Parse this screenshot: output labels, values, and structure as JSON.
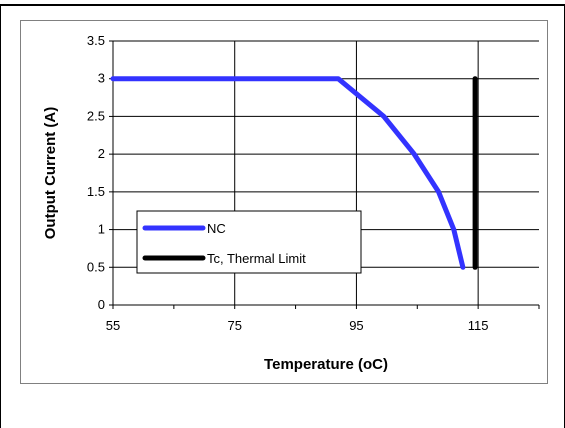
{
  "chart_data": {
    "type": "line",
    "xlabel": "Temperature (oC)",
    "ylabel": "Output Current (A)",
    "xlim": [
      55,
      125
    ],
    "ylim": [
      0,
      3.5
    ],
    "x_ticks": [
      "55",
      "75",
      "95",
      "115"
    ],
    "x_tick_values": [
      55,
      75,
      95,
      115
    ],
    "y_ticks": [
      "0",
      "0.5",
      "1",
      "1.5",
      "2",
      "2.5",
      "3",
      "3.5"
    ],
    "y_tick_values": [
      0,
      0.5,
      1,
      1.5,
      2,
      2.5,
      3,
      3.5
    ],
    "grid": true,
    "legend_position": "bottom-left",
    "series": [
      {
        "name": "NC",
        "color": "#3333ff",
        "points": [
          [
            55,
            3
          ],
          [
            92,
            3
          ],
          [
            99.5,
            2.5
          ],
          [
            104.5,
            2
          ],
          [
            108.5,
            1.5
          ],
          [
            111,
            1
          ],
          [
            112.5,
            0.5
          ]
        ]
      },
      {
        "name": "Tc, Thermal Limit",
        "color": "#000000",
        "points": [
          [
            114.5,
            0.5
          ],
          [
            114.5,
            3
          ]
        ]
      }
    ]
  }
}
